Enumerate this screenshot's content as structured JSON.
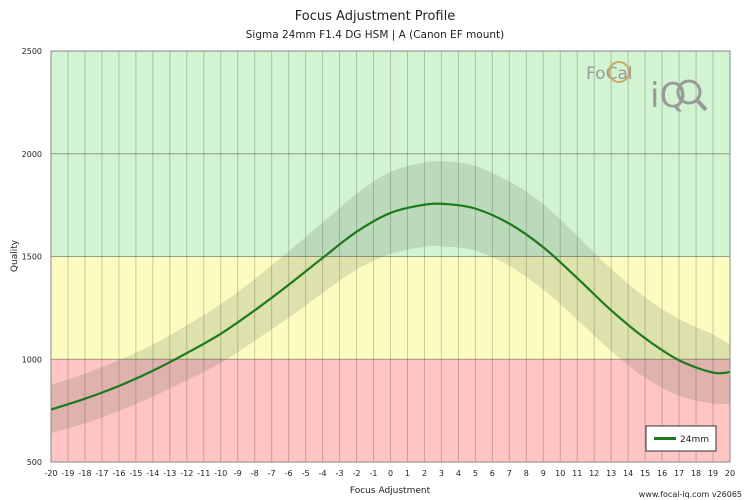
{
  "chart_data": {
    "type": "line",
    "title": "Focus Adjustment Profile",
    "subtitle": "Sigma 24mm F1.4 DG HSM | A (Canon EF mount)",
    "xlabel": "Focus Adjustment",
    "ylabel": "Quality",
    "xlim": [
      -20,
      20
    ],
    "ylim": [
      500,
      2500
    ],
    "xticks": [
      -20,
      -19,
      -18,
      -17,
      -16,
      -15,
      -14,
      -13,
      -12,
      -11,
      -10,
      -9,
      -8,
      -7,
      -6,
      -5,
      -4,
      -3,
      -2,
      -1,
      0,
      1,
      2,
      3,
      4,
      5,
      6,
      7,
      8,
      9,
      10,
      11,
      12,
      13,
      14,
      15,
      16,
      17,
      18,
      19,
      20
    ],
    "yticks": [
      500,
      1000,
      1500,
      2000,
      2500
    ],
    "bands": [
      {
        "from": 500,
        "to": 1000,
        "color": "#ffc4c4"
      },
      {
        "from": 1000,
        "to": 1500,
        "color": "#fcfcc0"
      },
      {
        "from": 1500,
        "to": 2500,
        "color": "#d2f4d2"
      }
    ],
    "series": [
      {
        "name": "24mm",
        "color": "#1c7a1c",
        "band_color": "rgba(60,90,60,0.16)",
        "x": [
          -20,
          -18,
          -16,
          -14,
          -12,
          -10,
          -8,
          -6,
          -4,
          -2,
          0,
          2,
          3.3,
          5,
          7,
          9,
          11,
          13,
          15,
          17,
          19,
          20
        ],
        "y": [
          755,
          808,
          870,
          944,
          1030,
          1124,
          1238,
          1362,
          1493,
          1620,
          1712,
          1752,
          1755,
          1733,
          1660,
          1545,
          1395,
          1238,
          1102,
          995,
          935,
          938
        ],
        "upper": [
          875,
          930,
          996,
          1072,
          1165,
          1268,
          1390,
          1525,
          1665,
          1805,
          1912,
          1957,
          1962,
          1940,
          1865,
          1755,
          1600,
          1440,
          1302,
          1195,
          1120,
          1072
        ],
        "lower": [
          640,
          688,
          748,
          818,
          898,
          982,
          1090,
          1202,
          1322,
          1436,
          1512,
          1547,
          1548,
          1528,
          1455,
          1338,
          1193,
          1040,
          910,
          823,
          784,
          785
        ]
      }
    ],
    "legend": {
      "position": "bottom-right",
      "entries": [
        "24mm"
      ]
    },
    "grid": true
  },
  "logo": {
    "text": "FoCal",
    "iq": "iQ"
  },
  "credit": "www.focal-iq.com  v26065"
}
